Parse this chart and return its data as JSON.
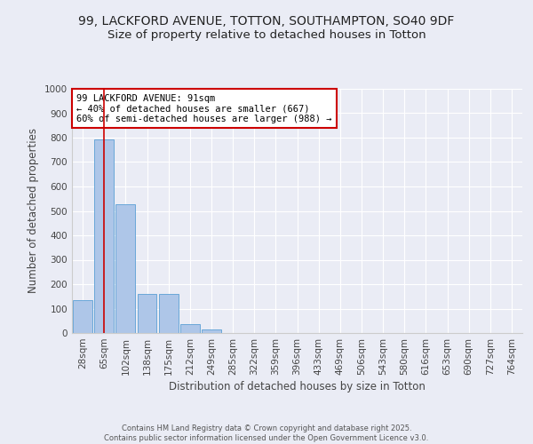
{
  "title1": "99, LACKFORD AVENUE, TOTTON, SOUTHAMPTON, SO40 9DF",
  "title2": "Size of property relative to detached houses in Totton",
  "xlabel": "Distribution of detached houses by size in Totton",
  "ylabel": "Number of detached properties",
  "categories": [
    "28sqm",
    "65sqm",
    "102sqm",
    "138sqm",
    "175sqm",
    "212sqm",
    "249sqm",
    "285sqm",
    "322sqm",
    "359sqm",
    "396sqm",
    "433sqm",
    "469sqm",
    "506sqm",
    "543sqm",
    "580sqm",
    "616sqm",
    "653sqm",
    "690sqm",
    "727sqm",
    "764sqm"
  ],
  "values": [
    133,
    793,
    527,
    160,
    160,
    38,
    15,
    0,
    0,
    0,
    0,
    0,
    0,
    0,
    0,
    0,
    0,
    0,
    0,
    0,
    0
  ],
  "bar_color": "#aec6e8",
  "bar_edge_color": "#5a9fd4",
  "vline_x": 1,
  "vline_color": "#cc0000",
  "annotation_text": "99 LACKFORD AVENUE: 91sqm\n← 40% of detached houses are smaller (667)\n60% of semi-detached houses are larger (988) →",
  "annotation_box_color": "#ffffff",
  "annotation_box_edge": "#cc0000",
  "footer": "Contains HM Land Registry data © Crown copyright and database right 2025.\nContains public sector information licensed under the Open Government Licence v3.0.",
  "bg_color": "#eaecf5",
  "plot_bg_color": "#eaecf5",
  "ylim": [
    0,
    1000
  ],
  "yticks": [
    0,
    100,
    200,
    300,
    400,
    500,
    600,
    700,
    800,
    900,
    1000
  ],
  "grid_color": "#ffffff",
  "title_fontsize": 10,
  "subtitle_fontsize": 9.5,
  "tick_fontsize": 7.5,
  "ylabel_fontsize": 8.5,
  "xlabel_fontsize": 8.5,
  "annotation_fontsize": 7.5,
  "footer_fontsize": 6.0
}
